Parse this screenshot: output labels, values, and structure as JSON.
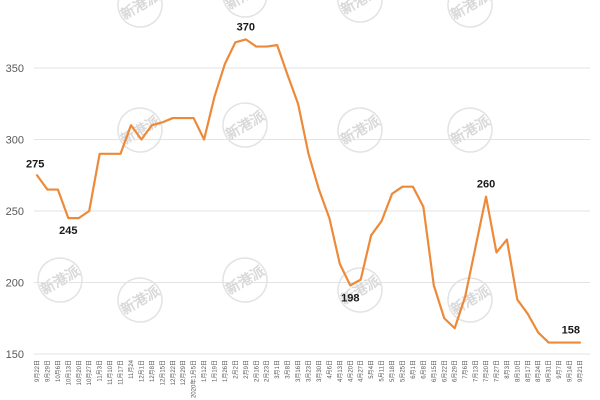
{
  "colors": {
    "line": "#ED8A3A",
    "grid": "#E3E3E3",
    "axis_text": "#595959",
    "label_text": "#1A1A1A",
    "background": "#FFFFFF",
    "watermark": "#D9D9D9"
  },
  "watermark": {
    "text": "新港派"
  },
  "chart_data": {
    "type": "line",
    "title": "",
    "xlabel": "",
    "ylabel": "",
    "ylim": [
      150,
      380
    ],
    "yticks": [
      150,
      200,
      250,
      300,
      350
    ],
    "grid": "horizontal",
    "legend": "none",
    "categories": [
      "9月22日",
      "9月29日",
      "10月6日",
      "10月13日",
      "10月20日",
      "10月27日",
      "11月3日",
      "11月10日",
      "11月17日",
      "11月24",
      "12月1日",
      "12月8日",
      "12月15日",
      "12月22日",
      "12月29日",
      "2020年1月5日",
      "1月12日",
      "1月19日",
      "1月26日",
      "2月2日",
      "2月9日",
      "2月16日",
      "2月23日",
      "3月1日",
      "3月8日",
      "3月16日",
      "3月23日",
      "3月30日",
      "4月6日",
      "4月13日",
      "4月20日",
      "4月27日",
      "5月4日",
      "5月11日",
      "5月18日",
      "5月25日",
      "6月1日",
      "6月8日",
      "6月15日",
      "6月22日",
      "6月29日",
      "7月6日",
      "7月13日",
      "7月20日",
      "7月27日",
      "8月3日",
      "8月10日",
      "8月17日",
      "8月24日",
      "8月31日",
      "9月7日",
      "9月14日",
      "9月21日"
    ],
    "series": [
      {
        "values": [
          275,
          265,
          265,
          245,
          245,
          250,
          290,
          290,
          290,
          310,
          300,
          310,
          312,
          315,
          315,
          315,
          300,
          330,
          353,
          368,
          370,
          365,
          365,
          366,
          345,
          325,
          290,
          265,
          245,
          213,
          198,
          202,
          233,
          243,
          262,
          267,
          267,
          253,
          198,
          175,
          168,
          190,
          225,
          260,
          221,
          230,
          188,
          178,
          165,
          158,
          158,
          158,
          158
        ]
      }
    ],
    "data_labels": [
      {
        "index": 0,
        "text": "275"
      },
      {
        "index": 3,
        "text": "245"
      },
      {
        "index": 20,
        "text": "370"
      },
      {
        "index": 30,
        "text": "198"
      },
      {
        "index": 43,
        "text": "260"
      },
      {
        "index": 52,
        "text": "158"
      }
    ]
  }
}
